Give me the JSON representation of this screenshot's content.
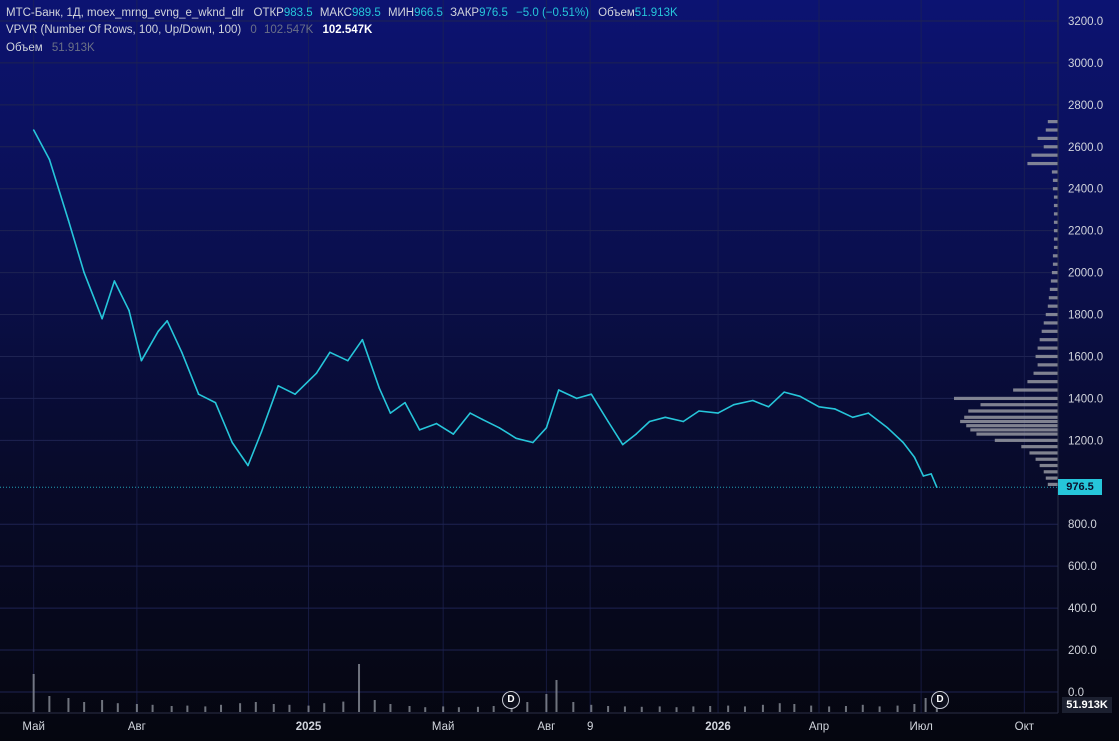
{
  "legend": {
    "symbol": "МТС-Банк, 1Д, moex_mrng_evng_e_wknd_dlr",
    "open_label": "ОТКР",
    "open": "983.5",
    "high_label": "МАКС",
    "high": "989.5",
    "low_label": "МИН",
    "low": "966.5",
    "close_label": "ЗАКР",
    "close": "976.5",
    "change": "−5.0 (−0.51%)",
    "volume_label": "Объем",
    "volume": "51.913K",
    "vpvr_title": "VPVR (Number Of Rows, 100, Up/Down, 100)",
    "vpvr_v0": "0",
    "vpvr_v1": "102.547K",
    "vpvr_v2": "102.547K",
    "vol_title": "Объем",
    "vol_value": "51.913K"
  },
  "price_tag": "976.5",
  "vol_tag": "51.913K",
  "dividend_mark": "D",
  "colors": {
    "series": "#26c6da",
    "volume": "#8a8e99",
    "profile": "#9598a1",
    "grid": "#1e2352",
    "axis_text": "#d1d4dc"
  },
  "chart_data": {
    "type": "line",
    "series": [
      {
        "values": [
          {
            "x": "2024-05-01",
            "y": 2680
          },
          {
            "x": "2024-05-15",
            "y": 2540
          },
          {
            "x": "2024-06-01",
            "y": 2250
          },
          {
            "x": "2024-06-15",
            "y": 2000
          },
          {
            "x": "2024-07-01",
            "y": 1780
          },
          {
            "x": "2024-07-12",
            "y": 1960
          },
          {
            "x": "2024-07-25",
            "y": 1820
          },
          {
            "x": "2024-08-05",
            "y": 1580
          },
          {
            "x": "2024-08-20",
            "y": 1720
          },
          {
            "x": "2024-08-28",
            "y": 1770
          },
          {
            "x": "2024-09-10",
            "y": 1620
          },
          {
            "x": "2024-09-25",
            "y": 1420
          },
          {
            "x": "2024-10-10",
            "y": 1380
          },
          {
            "x": "2024-10-25",
            "y": 1190
          },
          {
            "x": "2024-11-08",
            "y": 1080
          },
          {
            "x": "2024-11-20",
            "y": 1240
          },
          {
            "x": "2024-12-05",
            "y": 1460
          },
          {
            "x": "2024-12-20",
            "y": 1420
          },
          {
            "x": "2025-01-08",
            "y": 1520
          },
          {
            "x": "2025-01-20",
            "y": 1620
          },
          {
            "x": "2025-02-05",
            "y": 1580
          },
          {
            "x": "2025-02-18",
            "y": 1680
          },
          {
            "x": "2025-03-05",
            "y": 1450
          },
          {
            "x": "2025-03-15",
            "y": 1330
          },
          {
            "x": "2025-03-28",
            "y": 1380
          },
          {
            "x": "2025-04-10",
            "y": 1250
          },
          {
            "x": "2025-04-25",
            "y": 1280
          },
          {
            "x": "2025-05-10",
            "y": 1230
          },
          {
            "x": "2025-05-25",
            "y": 1330
          },
          {
            "x": "2025-06-05",
            "y": 1300
          },
          {
            "x": "2025-06-20",
            "y": 1260
          },
          {
            "x": "2025-07-05",
            "y": 1210
          },
          {
            "x": "2025-07-20",
            "y": 1190
          },
          {
            "x": "2025-08-01",
            "y": 1260
          },
          {
            "x": "2025-08-12",
            "y": 1440
          },
          {
            "x": "2025-08-28",
            "y": 1400
          },
          {
            "x": "2025-09-10",
            "y": 1420
          },
          {
            "x": "2025-09-25",
            "y": 1290
          },
          {
            "x": "2025-10-08",
            "y": 1180
          },
          {
            "x": "2025-10-20",
            "y": 1230
          },
          {
            "x": "2025-11-01",
            "y": 1290
          },
          {
            "x": "2025-11-15",
            "y": 1310
          },
          {
            "x": "2025-12-01",
            "y": 1290
          },
          {
            "x": "2025-12-15",
            "y": 1340
          },
          {
            "x": "2026-01-01",
            "y": 1330
          },
          {
            "x": "2026-01-15",
            "y": 1370
          },
          {
            "x": "2026-02-01",
            "y": 1390
          },
          {
            "x": "2026-02-15",
            "y": 1360
          },
          {
            "x": "2026-03-01",
            "y": 1430
          },
          {
            "x": "2026-03-15",
            "y": 1410
          },
          {
            "x": "2026-04-01",
            "y": 1360
          },
          {
            "x": "2026-04-15",
            "y": 1350
          },
          {
            "x": "2026-05-01",
            "y": 1310
          },
          {
            "x": "2026-05-15",
            "y": 1330
          },
          {
            "x": "2026-06-01",
            "y": 1260
          },
          {
            "x": "2026-06-15",
            "y": 1190
          },
          {
            "x": "2026-06-25",
            "y": 1120
          },
          {
            "x": "2026-07-03",
            "y": 1030
          },
          {
            "x": "2026-07-10",
            "y": 1040
          },
          {
            "x": "2026-07-15",
            "y": 976.5
          }
        ]
      }
    ],
    "volume": [
      {
        "x": "2024-05-01",
        "y": 95
      },
      {
        "x": "2024-05-15",
        "y": 40
      },
      {
        "x": "2024-06-01",
        "y": 35
      },
      {
        "x": "2024-06-15",
        "y": 25
      },
      {
        "x": "2024-07-01",
        "y": 30
      },
      {
        "x": "2024-07-15",
        "y": 22
      },
      {
        "x": "2024-08-01",
        "y": 20
      },
      {
        "x": "2024-08-15",
        "y": 18
      },
      {
        "x": "2024-09-01",
        "y": 15
      },
      {
        "x": "2024-09-15",
        "y": 16
      },
      {
        "x": "2024-10-01",
        "y": 14
      },
      {
        "x": "2024-10-15",
        "y": 18
      },
      {
        "x": "2024-11-01",
        "y": 22
      },
      {
        "x": "2024-11-15",
        "y": 25
      },
      {
        "x": "2024-12-01",
        "y": 20
      },
      {
        "x": "2024-12-15",
        "y": 18
      },
      {
        "x": "2025-01-01",
        "y": 16
      },
      {
        "x": "2025-01-15",
        "y": 22
      },
      {
        "x": "2025-02-01",
        "y": 26
      },
      {
        "x": "2025-02-15",
        "y": 120
      },
      {
        "x": "2025-03-01",
        "y": 30
      },
      {
        "x": "2025-03-15",
        "y": 20
      },
      {
        "x": "2025-04-01",
        "y": 15
      },
      {
        "x": "2025-04-15",
        "y": 12
      },
      {
        "x": "2025-05-01",
        "y": 14
      },
      {
        "x": "2025-05-15",
        "y": 12
      },
      {
        "x": "2025-06-01",
        "y": 13
      },
      {
        "x": "2025-06-15",
        "y": 15
      },
      {
        "x": "2025-07-01",
        "y": 20
      },
      {
        "x": "2025-07-15",
        "y": 25
      },
      {
        "x": "2025-08-01",
        "y": 45
      },
      {
        "x": "2025-08-10",
        "y": 80
      },
      {
        "x": "2025-08-25",
        "y": 25
      },
      {
        "x": "2025-09-10",
        "y": 18
      },
      {
        "x": "2025-09-25",
        "y": 15
      },
      {
        "x": "2025-10-10",
        "y": 14
      },
      {
        "x": "2025-10-25",
        "y": 13
      },
      {
        "x": "2025-11-10",
        "y": 14
      },
      {
        "x": "2025-11-25",
        "y": 12
      },
      {
        "x": "2025-12-10",
        "y": 14
      },
      {
        "x": "2025-12-25",
        "y": 15
      },
      {
        "x": "2026-01-10",
        "y": 16
      },
      {
        "x": "2026-01-25",
        "y": 14
      },
      {
        "x": "2026-02-10",
        "y": 18
      },
      {
        "x": "2026-02-25",
        "y": 22
      },
      {
        "x": "2026-03-10",
        "y": 20
      },
      {
        "x": "2026-03-25",
        "y": 16
      },
      {
        "x": "2026-04-10",
        "y": 14
      },
      {
        "x": "2026-04-25",
        "y": 15
      },
      {
        "x": "2026-05-10",
        "y": 18
      },
      {
        "x": "2026-05-25",
        "y": 14
      },
      {
        "x": "2026-06-10",
        "y": 16
      },
      {
        "x": "2026-06-25",
        "y": 20
      },
      {
        "x": "2026-07-05",
        "y": 35
      },
      {
        "x": "2026-07-15",
        "y": 22
      }
    ],
    "volume_profile": [
      {
        "price": 2720,
        "v": 10
      },
      {
        "price": 2680,
        "v": 12
      },
      {
        "price": 2640,
        "v": 20
      },
      {
        "price": 2600,
        "v": 14
      },
      {
        "price": 2560,
        "v": 26
      },
      {
        "price": 2520,
        "v": 30
      },
      {
        "price": 2480,
        "v": 6
      },
      {
        "price": 2440,
        "v": 5
      },
      {
        "price": 2400,
        "v": 5
      },
      {
        "price": 2360,
        "v": 4
      },
      {
        "price": 2320,
        "v": 4
      },
      {
        "price": 2280,
        "v": 4
      },
      {
        "price": 2240,
        "v": 4
      },
      {
        "price": 2200,
        "v": 4
      },
      {
        "price": 2160,
        "v": 4
      },
      {
        "price": 2120,
        "v": 4
      },
      {
        "price": 2080,
        "v": 5
      },
      {
        "price": 2040,
        "v": 5
      },
      {
        "price": 2000,
        "v": 6
      },
      {
        "price": 1960,
        "v": 7
      },
      {
        "price": 1920,
        "v": 8
      },
      {
        "price": 1880,
        "v": 9
      },
      {
        "price": 1840,
        "v": 10
      },
      {
        "price": 1800,
        "v": 12
      },
      {
        "price": 1760,
        "v": 14
      },
      {
        "price": 1720,
        "v": 16
      },
      {
        "price": 1680,
        "v": 18
      },
      {
        "price": 1640,
        "v": 20
      },
      {
        "price": 1600,
        "v": 22
      },
      {
        "price": 1560,
        "v": 20
      },
      {
        "price": 1520,
        "v": 24
      },
      {
        "price": 1480,
        "v": 30
      },
      {
        "price": 1440,
        "v": 44
      },
      {
        "price": 1400,
        "v": 102
      },
      {
        "price": 1370,
        "v": 76
      },
      {
        "price": 1340,
        "v": 88
      },
      {
        "price": 1310,
        "v": 92
      },
      {
        "price": 1290,
        "v": 96
      },
      {
        "price": 1270,
        "v": 90
      },
      {
        "price": 1250,
        "v": 86
      },
      {
        "price": 1230,
        "v": 80
      },
      {
        "price": 1200,
        "v": 62
      },
      {
        "price": 1170,
        "v": 36
      },
      {
        "price": 1140,
        "v": 28
      },
      {
        "price": 1110,
        "v": 22
      },
      {
        "price": 1080,
        "v": 18
      },
      {
        "price": 1050,
        "v": 14
      },
      {
        "price": 1020,
        "v": 12
      },
      {
        "price": 990,
        "v": 10
      }
    ],
    "y_ticks": [
      "3200.0",
      "3000.0",
      "2800.0",
      "2600.0",
      "2400.0",
      "2200.0",
      "2000.0",
      "1800.0",
      "1600.0",
      "1400.0",
      "1200.0",
      "800.0",
      "600.0",
      "400.0",
      "200.0",
      "0.0"
    ],
    "ylim": [
      0,
      3300
    ],
    "x_ticks": [
      {
        "label": "Май",
        "x": "2024-05-01"
      },
      {
        "label": "Авг",
        "x": "2024-08-01"
      },
      {
        "label": "2025",
        "x": "2025-01-01"
      },
      {
        "label": "Май",
        "x": "2025-05-01"
      },
      {
        "label": "Авг",
        "x": "2025-08-01"
      },
      {
        "label": "9",
        "x": "2025-09-09"
      },
      {
        "label": "2026",
        "x": "2026-01-01"
      },
      {
        "label": "Апр",
        "x": "2026-04-01"
      },
      {
        "label": "Июл",
        "x": "2026-07-01"
      },
      {
        "label": "Окт",
        "x": "2026-10-01"
      }
    ],
    "xlim": [
      "2024-04-01",
      "2026-10-31"
    ],
    "last_price": 976.5,
    "grid": true
  }
}
